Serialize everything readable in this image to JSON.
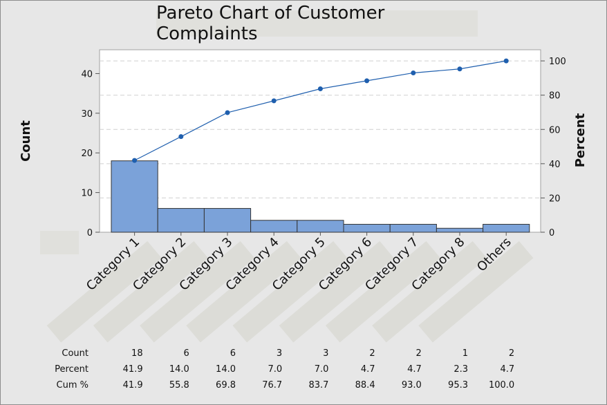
{
  "chart_data": {
    "type": "pareto",
    "title": "Pareto Chart of Customer Complaints",
    "ylabel_left": "Count",
    "ylabel_right": "Percent",
    "ylim_left": [
      0,
      46
    ],
    "ylim_right": [
      0,
      106.5
    ],
    "left_ticks": [
      "0",
      "10",
      "20",
      "30",
      "40"
    ],
    "right_ticks": [
      "0",
      "20",
      "40",
      "60",
      "80",
      "100"
    ],
    "categories": [
      "Category 1",
      "Category 2",
      "Category 3",
      "Category 4",
      "Category 5",
      "Category 6",
      "Category 7",
      "Category 8",
      "Others"
    ],
    "counts": [
      18,
      6,
      6,
      3,
      3,
      2,
      2,
      1,
      2
    ],
    "cumulative_percent": [
      41.9,
      55.8,
      69.8,
      76.7,
      83.7,
      88.4,
      93.0,
      95.3,
      100.0
    ],
    "bar_color": "#7ba2d9",
    "line_color": "#1f5fae",
    "table": {
      "row_labels": [
        "Count",
        "Percent",
        "Cum %"
      ],
      "rows": [
        [
          "18",
          "6",
          "6",
          "3",
          "3",
          "2",
          "2",
          "1",
          "2"
        ],
        [
          "41.9",
          "14.0",
          "14.0",
          "7.0",
          "7.0",
          "4.7",
          "4.7",
          "2.3",
          "4.7"
        ],
        [
          "41.9",
          "55.8",
          "69.8",
          "76.7",
          "83.7",
          "88.4",
          "93.0",
          "95.3",
          "100.0"
        ]
      ]
    }
  }
}
